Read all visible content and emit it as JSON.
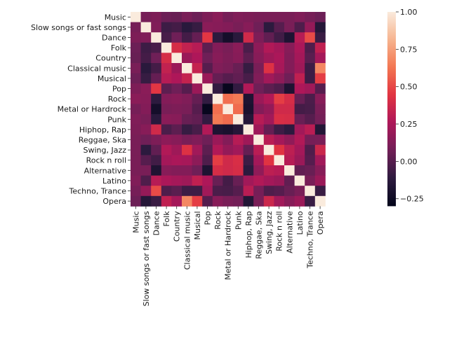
{
  "chart_data": {
    "type": "heatmap",
    "labels": [
      "Music",
      "Slow songs or fast songs",
      "Dance",
      "Folk",
      "Country",
      "Classical music",
      "Musical",
      "Pop",
      "Rock",
      "Metal or Hardrock",
      "Punk",
      "Hiphop, Rap",
      "Reggae, Ska",
      "Swing, Jazz",
      "Rock n roll",
      "Alternative",
      "Latino",
      "Techno, Trance",
      "Opera"
    ],
    "values": [
      [
        1.0,
        0.09,
        0.11,
        0.06,
        0.05,
        0.1,
        0.06,
        0.11,
        0.15,
        0.09,
        0.12,
        0.11,
        0.1,
        0.1,
        0.1,
        0.1,
        0.12,
        0.09,
        0.06
      ],
      [
        0.09,
        1.0,
        0.12,
        -0.07,
        -0.05,
        -0.13,
        -0.09,
        0.15,
        0.14,
        0.13,
        0.1,
        0.14,
        0.07,
        -0.12,
        0.0,
        0.1,
        -0.02,
        0.18,
        -0.15
      ],
      [
        0.11,
        0.12,
        1.0,
        -0.04,
        0.07,
        -0.05,
        0.04,
        0.45,
        -0.12,
        -0.22,
        -0.13,
        0.38,
        0.11,
        0.03,
        -0.06,
        -0.18,
        0.29,
        0.51,
        -0.08
      ],
      [
        0.06,
        -0.07,
        -0.04,
        1.0,
        0.4,
        0.33,
        0.29,
        0.02,
        0.13,
        0.1,
        0.15,
        -0.03,
        0.16,
        0.27,
        0.23,
        0.14,
        0.25,
        -0.02,
        0.32
      ],
      [
        0.05,
        -0.05,
        0.07,
        0.4,
        1.0,
        0.2,
        0.26,
        0.07,
        0.14,
        0.11,
        0.14,
        0.02,
        0.14,
        0.21,
        0.25,
        0.13,
        0.23,
        0.01,
        0.23
      ],
      [
        0.1,
        -0.13,
        -0.05,
        0.33,
        0.2,
        1.0,
        0.34,
        0.0,
        0.12,
        0.1,
        0.05,
        -0.09,
        0.1,
        0.43,
        0.24,
        0.13,
        0.21,
        -0.07,
        0.68
      ],
      [
        0.06,
        -0.09,
        0.04,
        0.29,
        0.26,
        0.34,
        1.0,
        0.2,
        0.04,
        0.0,
        0.03,
        -0.04,
        0.12,
        0.22,
        0.16,
        0.07,
        0.32,
        -0.07,
        0.47
      ],
      [
        0.11,
        0.15,
        0.45,
        0.02,
        0.07,
        0.0,
        0.2,
        1.0,
        -0.1,
        -0.28,
        -0.1,
        0.27,
        0.07,
        0.02,
        -0.02,
        -0.18,
        0.26,
        0.22,
        0.0
      ],
      [
        0.15,
        0.14,
        -0.12,
        0.13,
        0.14,
        0.12,
        0.04,
        -0.1,
        1.0,
        0.61,
        0.64,
        -0.18,
        0.2,
        0.27,
        0.47,
        0.4,
        0.05,
        -0.03,
        0.14
      ],
      [
        0.09,
        0.13,
        -0.22,
        0.1,
        0.11,
        0.1,
        0.0,
        -0.28,
        0.61,
        1.0,
        0.6,
        -0.2,
        0.13,
        0.18,
        0.38,
        0.38,
        -0.05,
        -0.04,
        0.1
      ],
      [
        0.12,
        0.1,
        -0.13,
        0.15,
        0.14,
        0.05,
        0.03,
        -0.1,
        0.64,
        0.6,
        1.0,
        -0.15,
        0.29,
        0.22,
        0.41,
        0.4,
        0.05,
        0.0,
        0.08
      ],
      [
        0.11,
        0.14,
        0.38,
        -0.03,
        0.02,
        -0.09,
        -0.04,
        0.27,
        -0.18,
        -0.2,
        -0.15,
        1.0,
        0.21,
        0.04,
        -0.07,
        -0.12,
        0.22,
        0.3,
        -0.16
      ],
      [
        0.1,
        0.07,
        0.11,
        0.16,
        0.14,
        0.1,
        0.12,
        0.07,
        0.2,
        0.13,
        0.29,
        0.21,
        1.0,
        0.3,
        0.23,
        0.17,
        0.27,
        0.09,
        0.1
      ],
      [
        0.1,
        -0.12,
        0.03,
        0.27,
        0.21,
        0.43,
        0.22,
        0.02,
        0.27,
        0.18,
        0.22,
        0.04,
        0.3,
        1.0,
        0.44,
        0.31,
        0.23,
        -0.02,
        0.36
      ],
      [
        0.1,
        0.0,
        -0.06,
        0.23,
        0.25,
        0.24,
        0.16,
        -0.02,
        0.47,
        0.38,
        0.41,
        -0.07,
        0.23,
        0.44,
        1.0,
        0.29,
        0.2,
        0.0,
        0.22
      ],
      [
        0.1,
        0.1,
        -0.18,
        0.14,
        0.13,
        0.13,
        0.07,
        -0.18,
        0.4,
        0.38,
        0.4,
        -0.12,
        0.17,
        0.31,
        0.29,
        1.0,
        0.03,
        0.05,
        0.14
      ],
      [
        0.12,
        -0.02,
        0.29,
        0.25,
        0.23,
        0.21,
        0.32,
        0.26,
        0.05,
        -0.05,
        0.05,
        0.22,
        0.27,
        0.23,
        0.2,
        0.03,
        1.0,
        0.1,
        0.2
      ],
      [
        0.09,
        0.18,
        0.51,
        -0.02,
        0.01,
        -0.07,
        -0.07,
        0.22,
        -0.03,
        -0.04,
        0.0,
        0.3,
        0.09,
        -0.02,
        0.0,
        0.05,
        0.1,
        1.0,
        -0.08
      ],
      [
        0.06,
        -0.15,
        -0.08,
        0.32,
        0.23,
        0.68,
        0.47,
        0.0,
        0.14,
        0.1,
        0.08,
        -0.16,
        0.1,
        0.36,
        0.22,
        0.14,
        0.2,
        -0.08,
        1.0
      ]
    ],
    "colorbar": {
      "min": -0.3,
      "max": 1.0,
      "ticks": [
        1.0,
        0.75,
        0.5,
        0.25,
        0.0,
        -0.25
      ],
      "tick_labels": [
        "1.00",
        "0.75",
        "0.50",
        "0.25",
        "0.00",
        "−0.25"
      ],
      "colormap": "rocket",
      "stops": [
        "#03051a",
        "#2d1b3f",
        "#701f57",
        "#ad1759",
        "#e13342",
        "#f37651",
        "#f6b48f",
        "#faebdd"
      ]
    },
    "xlabel": "",
    "ylabel": ""
  }
}
